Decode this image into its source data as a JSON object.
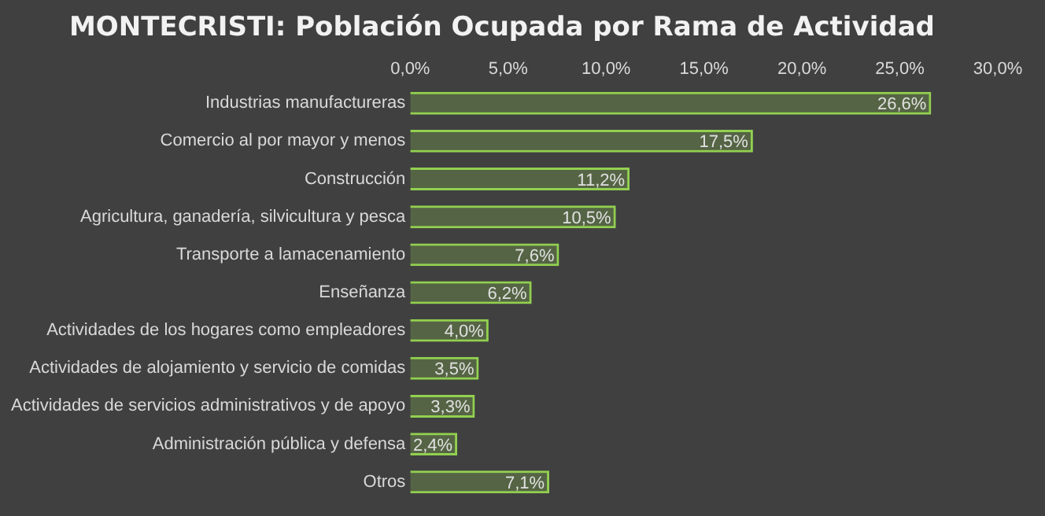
{
  "chart_data": {
    "type": "bar",
    "title": "MONTECRISTI: Población Ocupada por Rama de Actividad",
    "orientation": "horizontal",
    "categories": [
      "Industrias manufactureras",
      "Comercio al por mayor y menos",
      "Construcción",
      "Agricultura, ganadería, silvicultura y pesca",
      "Transporte a lamacenamiento",
      "Enseñanza",
      "Actividades de los hogares como empleadores",
      "Actividades de alojamiento y servicio de comidas",
      "Actividades de servicios administrativos y de apoyo",
      "Administración pública y defensa",
      "Otros"
    ],
    "values": [
      26.6,
      17.5,
      11.2,
      10.5,
      7.6,
      6.2,
      4.0,
      3.5,
      3.3,
      2.4,
      7.1
    ],
    "value_labels": [
      "26,6%",
      "17,5%",
      "11,2%",
      "10,5%",
      "7,6%",
      "6,2%",
      "4,0%",
      "3,5%",
      "3,3%",
      "2,4%",
      "7,1%"
    ],
    "color": "#92d050",
    "xlim": [
      0,
      30
    ],
    "xticks": [
      {
        "value": 0,
        "label": "0,0%"
      },
      {
        "value": 5,
        "label": "5,0%"
      },
      {
        "value": 10,
        "label": "10,0%"
      },
      {
        "value": 15,
        "label": "15,0%"
      },
      {
        "value": 20,
        "label": "20,0%"
      },
      {
        "value": 25,
        "label": "25,0%"
      },
      {
        "value": 30,
        "label": "30,0%"
      }
    ],
    "grid": false,
    "legend": false
  }
}
